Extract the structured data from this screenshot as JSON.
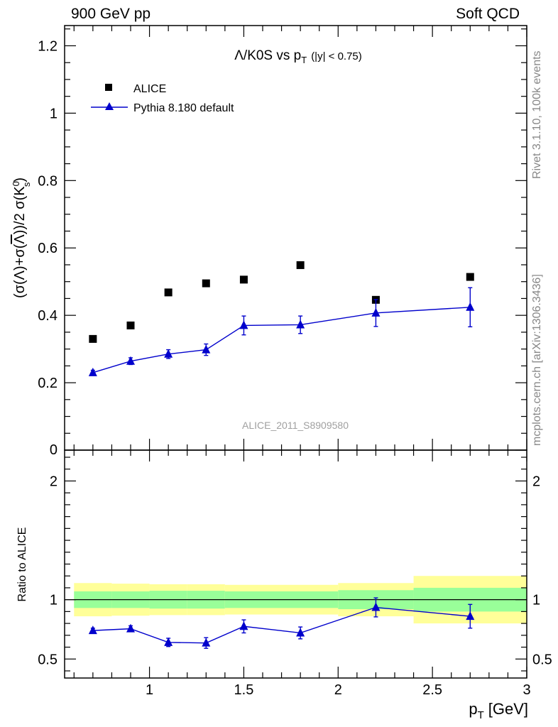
{
  "header": {
    "left": "900 GeV pp",
    "right": "Soft QCD"
  },
  "side_notes": {
    "rivet": "Rivet 3.1.10,  100k events",
    "mcplots": "mcplots.cern.ch [arXiv:1306.3436]"
  },
  "chart_data": [
    {
      "type": "scatter",
      "panel": "main",
      "title": "Λ/K0S vs p",
      "title_sub": "T",
      "title_suffix": "(|y| < 0.75)",
      "ylabel": "(σ(Λ)+σ(Λ))/2 σ(K⁰ₛ)",
      "ylabel_parts": {
        "lead": "(σ(Λ)+σ(",
        "bar": "Λ",
        "mid": "))/2 σ(K",
        "sup": "0",
        "sub": "s",
        "tail": ")"
      },
      "watermark": "ALICE_2011_S8909580",
      "xlim": [
        0.55,
        3.0
      ],
      "ylim": [
        0,
        1.26
      ],
      "yticks": [
        0.2,
        0.4,
        0.6,
        0.8,
        1,
        1.2
      ],
      "ytick_labels": [
        "0.2",
        "0.4",
        "0.6",
        "0.8",
        "1",
        "1.2"
      ],
      "bottom_tick_label": "0",
      "legend_position": "top-left",
      "series": [
        {
          "name": "ALICE",
          "marker": "square",
          "color": "#000000",
          "x": [
            0.7,
            0.9,
            1.1,
            1.3,
            1.5,
            1.8,
            2.2,
            2.7
          ],
          "y": [
            0.33,
            0.37,
            0.468,
            0.495,
            0.506,
            0.549,
            0.446,
            0.514
          ]
        },
        {
          "name": "Pythia 8.180 default",
          "marker": "triangle",
          "color": "#0000cc",
          "x": [
            0.7,
            0.9,
            1.1,
            1.3,
            1.5,
            1.8,
            2.2,
            2.7
          ],
          "y": [
            0.23,
            0.264,
            0.285,
            0.298,
            0.37,
            0.372,
            0.407,
            0.424
          ],
          "err_up": [
            0.007,
            0.01,
            0.013,
            0.017,
            0.028,
            0.026,
            0.04,
            0.058
          ],
          "err_down": [
            0.007,
            0.01,
            0.013,
            0.017,
            0.028,
            0.026,
            0.04,
            0.058
          ]
        }
      ]
    },
    {
      "type": "scatter",
      "panel": "ratio",
      "ylabel": "Ratio to ALICE",
      "xlabel": "p",
      "xlabel_sub": "T",
      "xlabel_unit": "[GeV]",
      "xlim": [
        0.55,
        3.0
      ],
      "ylim": [
        0.34,
        2.26
      ],
      "xticks": [
        1,
        1.5,
        2,
        2.5,
        3
      ],
      "xtick_labels": [
        "1",
        "1.5",
        "2",
        "2.5",
        "3"
      ],
      "yticks": [
        0.5,
        1,
        2
      ],
      "ytick_labels": [
        "0.5",
        "1",
        "2"
      ],
      "bands": {
        "edges": [
          0.6,
          0.8,
          1.0,
          1.2,
          1.4,
          1.6,
          2.0,
          2.4,
          3.0
        ],
        "inner_color": "#99ff99",
        "outer_color": "#ffff99",
        "inner_low": [
          0.93,
          0.93,
          0.925,
          0.925,
          0.93,
          0.93,
          0.92,
          0.9
        ],
        "inner_high": [
          1.07,
          1.07,
          1.075,
          1.075,
          1.07,
          1.07,
          1.08,
          1.1
        ],
        "outer_low": [
          0.86,
          0.865,
          0.87,
          0.87,
          0.875,
          0.875,
          0.86,
          0.8
        ],
        "outer_high": [
          1.14,
          1.135,
          1.13,
          1.13,
          1.125,
          1.125,
          1.14,
          1.2
        ]
      },
      "series": [
        {
          "name": "Pythia 8.180 default",
          "marker": "triangle",
          "color": "#0000cc",
          "x": [
            0.7,
            0.9,
            1.1,
            1.3,
            1.5,
            1.8,
            2.2,
            2.7
          ],
          "y": [
            0.74,
            0.755,
            0.64,
            0.635,
            0.775,
            0.72,
            0.935,
            0.86
          ],
          "err_up": [
            0.02,
            0.025,
            0.035,
            0.045,
            0.055,
            0.05,
            0.08,
            0.1
          ],
          "err_down": [
            0.02,
            0.025,
            0.035,
            0.045,
            0.055,
            0.05,
            0.08,
            0.1
          ]
        }
      ]
    }
  ]
}
